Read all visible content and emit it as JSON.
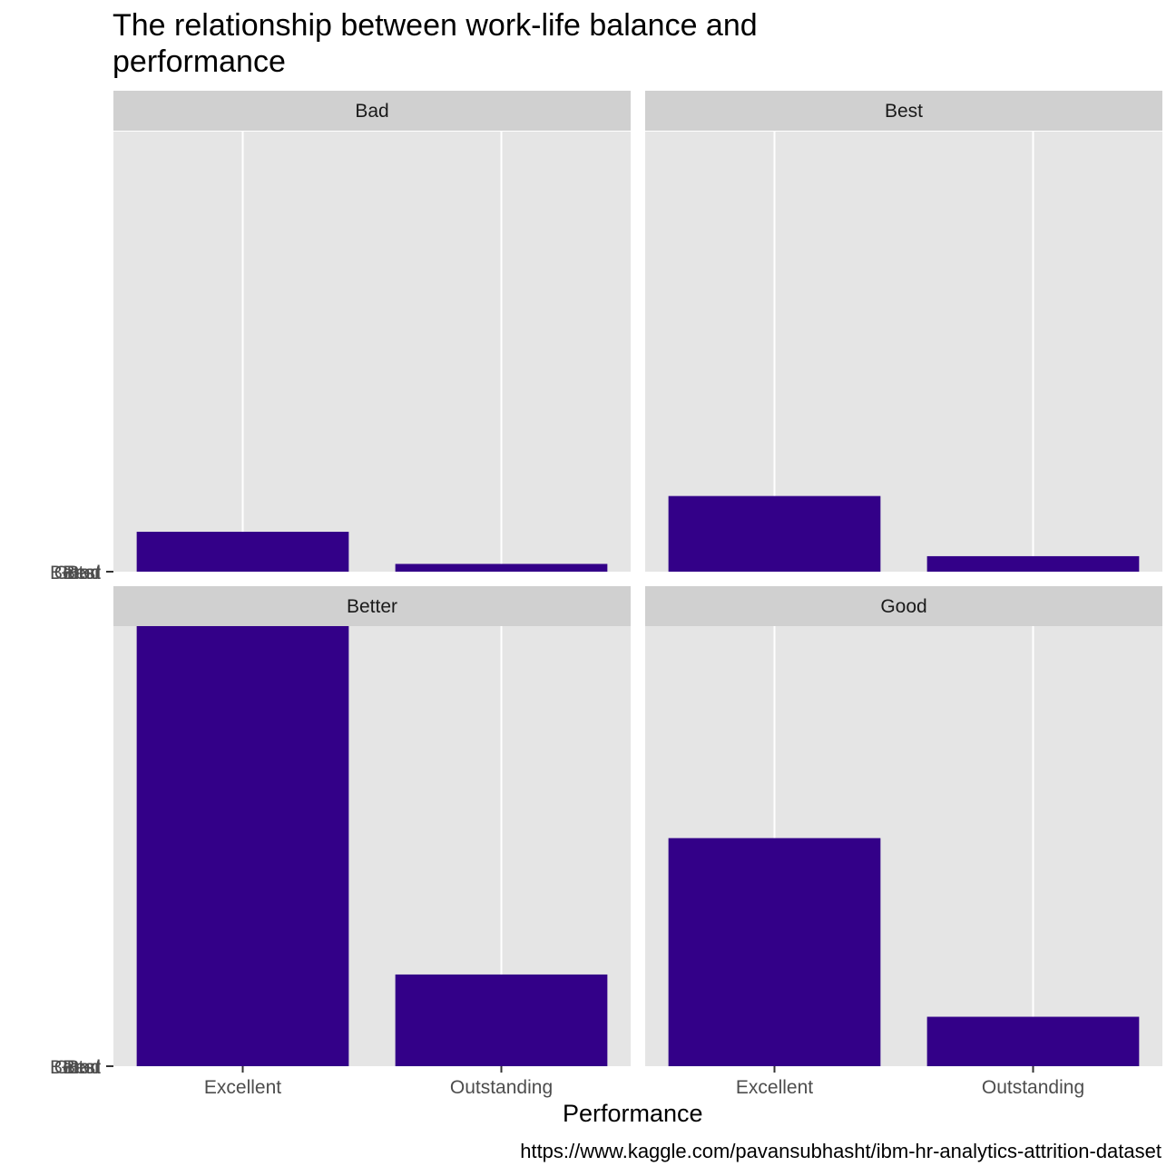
{
  "chart_data": {
    "type": "bar",
    "title": "The relationship between work-life balance and\nperformance",
    "xlabel": "Performance",
    "ylabel": "",
    "caption": "https://www.kaggle.com/pavansubhasht/ibm-hr-analytics-attrition-dataset",
    "categories": [
      "Excellent",
      "Outstanding"
    ],
    "facets": [
      {
        "label": "Bad",
        "values": [
          67,
          13
        ]
      },
      {
        "label": "Best",
        "values": [
          127,
          26
        ]
      },
      {
        "label": "Better",
        "values": [
          739,
          154
        ]
      },
      {
        "label": "Good",
        "values": [
          383,
          83
        ]
      }
    ],
    "ylim": [
      0,
      739
    ],
    "y_tick_labels": [
      "Bad",
      "Best",
      "Better",
      "Good"
    ],
    "bar_color": "#330088",
    "panel_color": "#e5e5e5",
    "strip_color": "#d0d0d0",
    "grid": true,
    "layout": "2x2 facet grid"
  }
}
